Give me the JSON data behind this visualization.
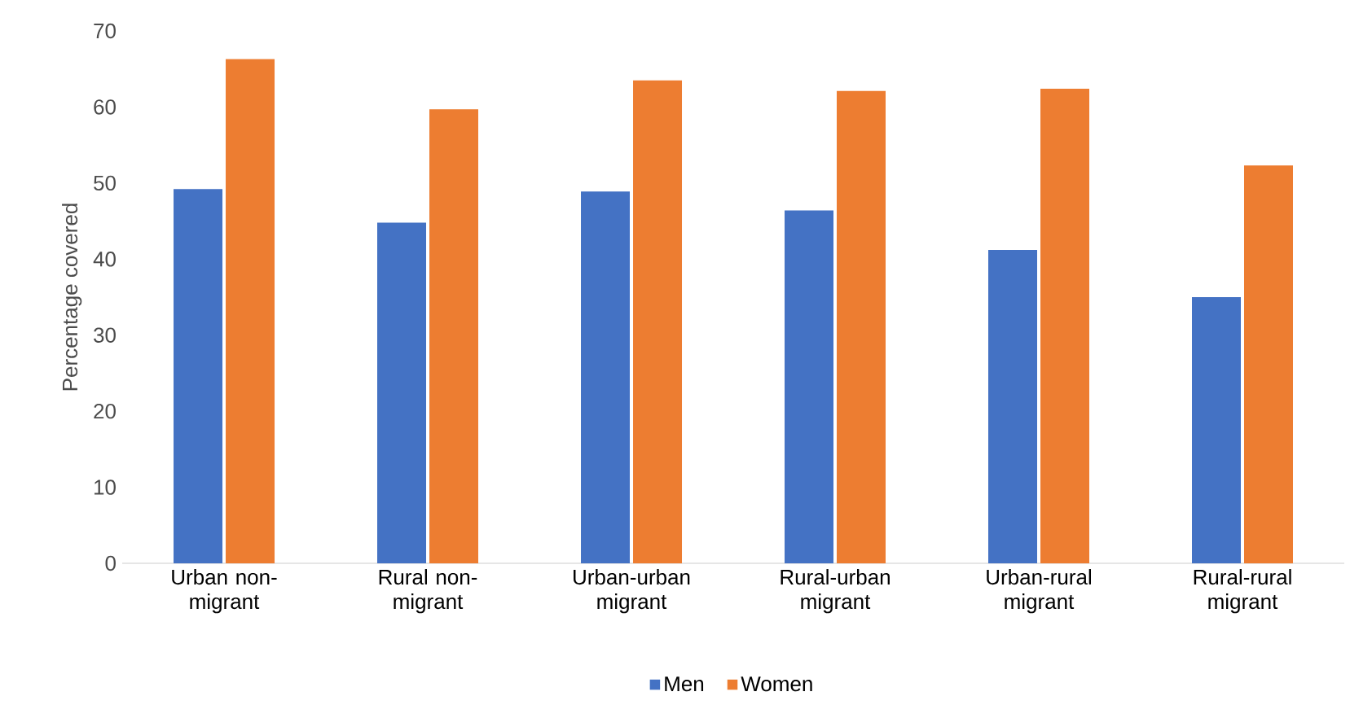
{
  "chart_data": {
    "type": "bar",
    "ylabel": "Percentage covered",
    "categories": [
      "Urban non-migrant",
      "Rural non-migrant",
      "Urban-urban migrant",
      "Rural-urban migrant",
      "Urban-rural migrant",
      "Rural-rural migrant"
    ],
    "series": [
      {
        "name": "Men",
        "color": "#4472c4",
        "values": [
          49.2,
          44.8,
          48.9,
          46.4,
          41.2,
          35.0
        ]
      },
      {
        "name": "Women",
        "color": "#ed7d31",
        "values": [
          66.3,
          59.7,
          63.5,
          62.1,
          62.4,
          52.3
        ]
      }
    ],
    "ylim": [
      0,
      70
    ],
    "yticks": [
      0,
      10,
      20,
      30,
      40,
      50,
      60,
      70
    ],
    "legend": "bottom"
  }
}
